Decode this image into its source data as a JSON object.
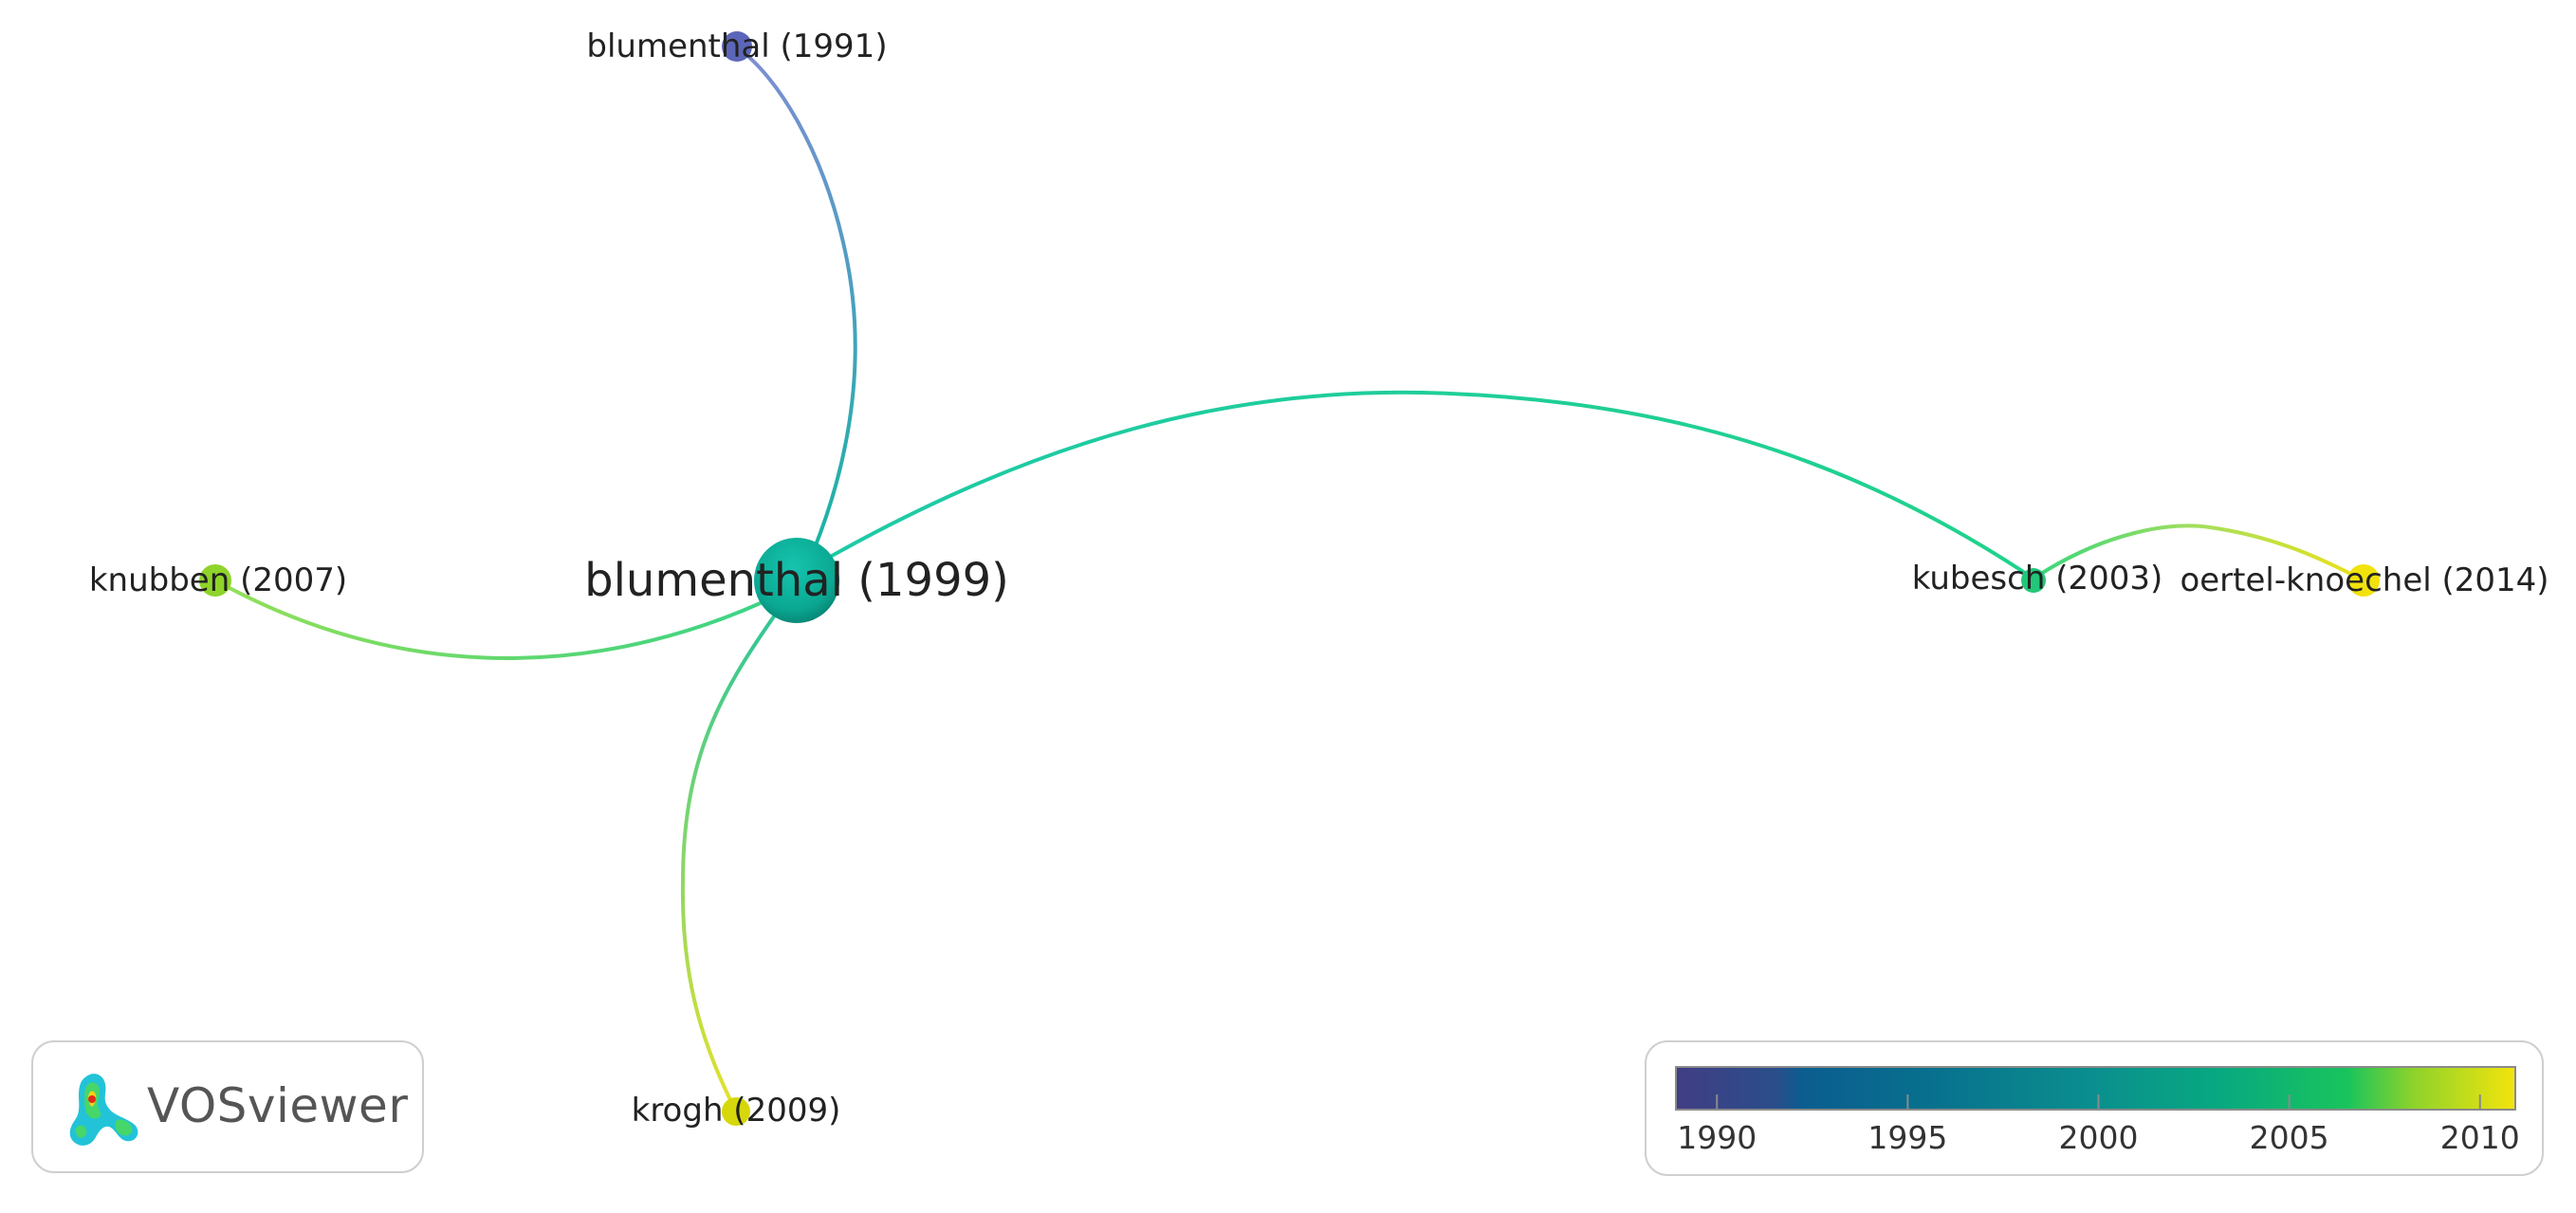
{
  "nodes": [
    {
      "id": "b1999",
      "label": "blumenthal (1999)",
      "year": 1999,
      "color": "#0fa89a"
    },
    {
      "id": "b1991",
      "label": "blumenthal (1991)",
      "year": 1991,
      "color": "#5a63b8"
    },
    {
      "id": "kn2007",
      "label": "knubben (2007)",
      "year": 2007,
      "color": "#8ad42a"
    },
    {
      "id": "kr2009",
      "label": "krogh (2009)",
      "year": 2009,
      "color": "#d8d80c"
    },
    {
      "id": "ku2003",
      "label": "kubesch (2003)",
      "year": 2003,
      "color": "#1ec77a"
    },
    {
      "id": "ok2014",
      "label": "oertel-knoechel (2014)",
      "year": 2014,
      "color": "#f3e40c"
    }
  ],
  "edges": [
    {
      "from": "b1999",
      "to": "b1991"
    },
    {
      "from": "b1999",
      "to": "kn2007"
    },
    {
      "from": "b1999",
      "to": "kr2009"
    },
    {
      "from": "b1999",
      "to": "ku2003"
    },
    {
      "from": "ku2003",
      "to": "ok2014"
    }
  ],
  "logo": {
    "text": "VOSviewer"
  },
  "legend": {
    "min_year": 1989,
    "max_year": 2011,
    "ticks": [
      "1990",
      "1995",
      "2000",
      "2005",
      "2010"
    ],
    "colors": [
      "#413d84",
      "#1f5f8c",
      "#08708e",
      "#0a8f8e",
      "#08a980",
      "#19c45c",
      "#8fd32a",
      "#f3e40c"
    ]
  }
}
